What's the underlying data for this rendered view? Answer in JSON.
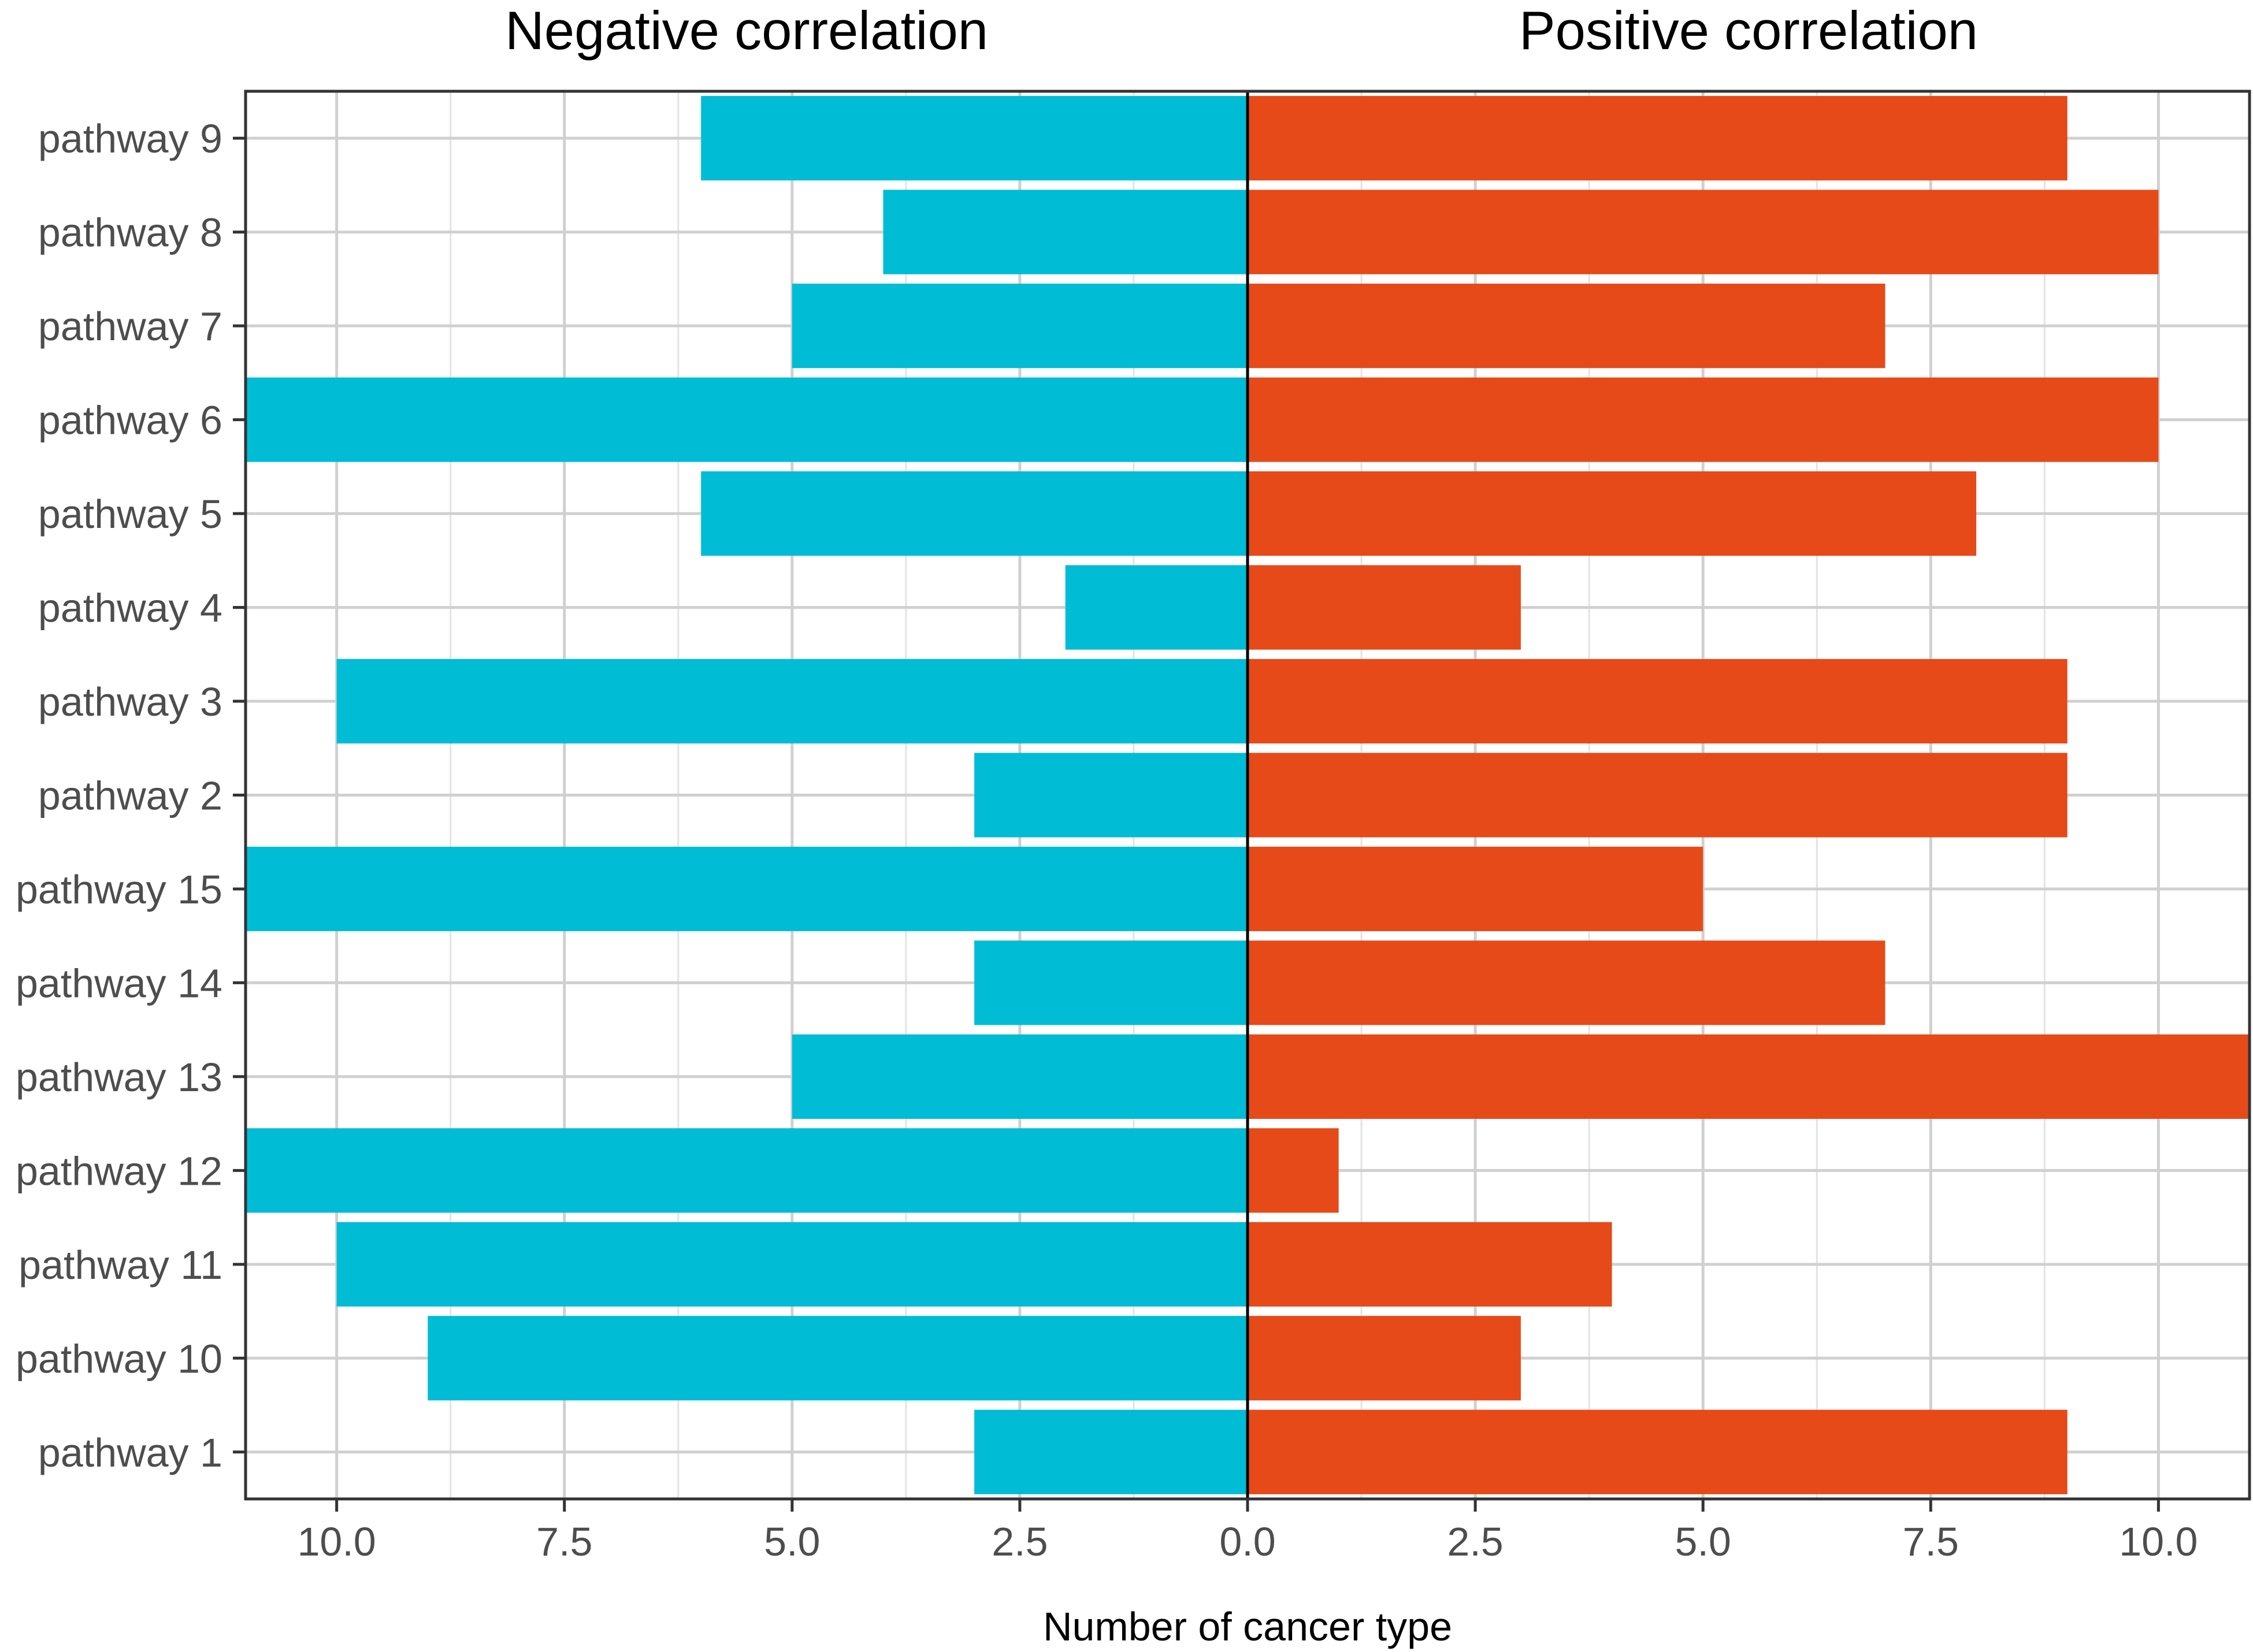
{
  "chart_data": {
    "type": "bar",
    "orientation": "horizontal",
    "layout": "diverging",
    "panel_titles": {
      "negative": "Negative correlation",
      "positive": "Positive correlation"
    },
    "xlabel": "Number of cancer type",
    "ylabel": "",
    "categories": [
      "pathway 9",
      "pathway 8",
      "pathway 7",
      "pathway 6",
      "pathway 5",
      "pathway 4",
      "pathway 3",
      "pathway 2",
      "pathway 15",
      "pathway 14",
      "pathway 13",
      "pathway 12",
      "pathway 11",
      "pathway 10",
      "pathway 1"
    ],
    "series": [
      {
        "name": "Negative correlation",
        "color": "#00BCD4",
        "values": [
          6,
          4,
          5,
          11,
          6,
          2,
          10,
          3,
          11,
          3,
          5,
          11,
          10,
          9,
          3
        ]
      },
      {
        "name": "Positive correlation",
        "color": "#E64A19",
        "values": [
          9,
          10,
          7,
          10,
          8,
          3,
          9,
          9,
          5,
          7,
          11,
          1,
          4,
          3,
          9
        ]
      }
    ],
    "xlim": [
      -11,
      11
    ],
    "xticks": [
      -10,
      -7.5,
      -5,
      -2.5,
      0,
      2.5,
      5,
      7.5,
      10
    ],
    "xtick_labels": [
      "10.0",
      "7.5",
      "5.0",
      "2.5",
      "0.0",
      "2.5",
      "5.0",
      "7.5",
      "10.0"
    ],
    "grid": true,
    "legend": "none"
  }
}
